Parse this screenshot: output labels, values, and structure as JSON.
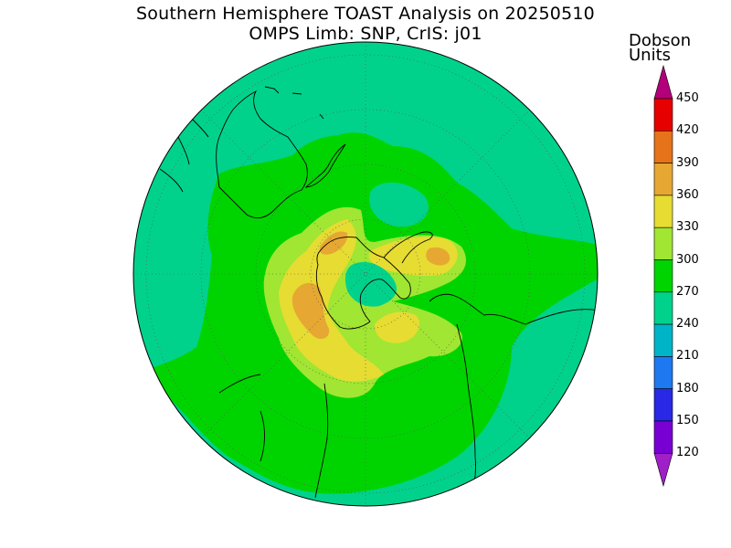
{
  "title": {
    "line1": "Southern Hemisphere TOAST Analysis on 20250510",
    "line2": "OMPS Limb: SNP, CrIS: j01"
  },
  "colorbar": {
    "units_line1": "Dobson",
    "units_line2": "Units",
    "labels": [
      "450",
      "420",
      "390",
      "360",
      "330",
      "300",
      "270",
      "240",
      "210",
      "180",
      "150",
      "120"
    ],
    "bins": [
      {
        "color": "#b3007a"
      },
      {
        "color": "#e60000"
      },
      {
        "color": "#e6731a"
      },
      {
        "color": "#e6a832"
      },
      {
        "color": "#e6dc32"
      },
      {
        "color": "#a0e632"
      },
      {
        "color": "#00d400"
      },
      {
        "color": "#00d28c"
      },
      {
        "color": "#00b4c8"
      },
      {
        "color": "#1e78f0"
      },
      {
        "color": "#2828e6"
      },
      {
        "color": "#7800d2"
      },
      {
        "color": "#a020c8"
      }
    ]
  },
  "map_colors": {
    "ocean_background": "#00d28c",
    "low_band": "#00d400",
    "mid": "#a0e632",
    "high": "#e6dc32",
    "peak": "#e6a832",
    "coastline": "#000000",
    "grid": "#555555"
  }
}
